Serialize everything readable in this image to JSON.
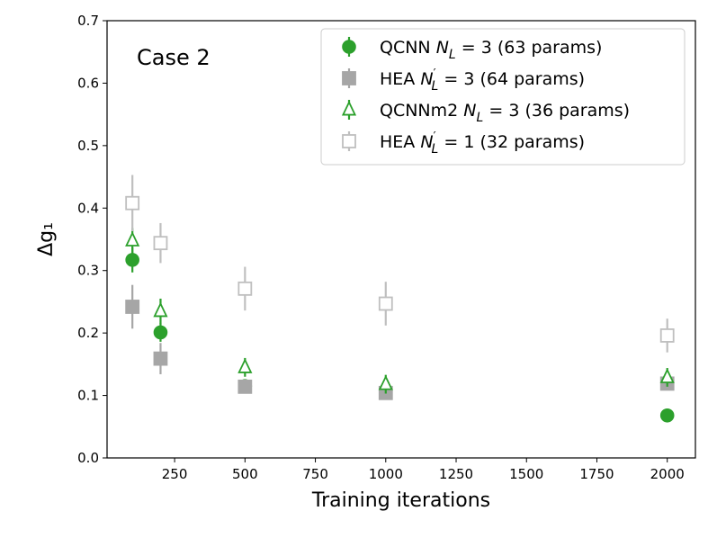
{
  "chart_data": {
    "type": "scatter",
    "title": "",
    "annotation": "Case 2",
    "xlabel": "Training iterations",
    "ylabel": "Δg₁",
    "xlim": [
      10,
      2100
    ],
    "ylim": [
      0.0,
      0.7
    ],
    "xticks": [
      250,
      500,
      750,
      1000,
      1250,
      1500,
      1750,
      2000
    ],
    "xtick_labels": [
      "250",
      "500",
      "750",
      "1000",
      "1250",
      "1500",
      "1750",
      "2000"
    ],
    "yticks": [
      0.0,
      0.1,
      0.2,
      0.3,
      0.4,
      0.5,
      0.6,
      0.7
    ],
    "ytick_labels": [
      "0.0",
      "0.1",
      "0.2",
      "0.3",
      "0.4",
      "0.5",
      "0.6",
      "0.7"
    ],
    "legend_position": "top-right",
    "colors": {
      "green": "#2ca02c",
      "gray": "#a6a6a6",
      "lightgray": "#bfbfbf"
    },
    "series": [
      {
        "name": "QCNN N_L = 3 (63 params)",
        "legend_prefix": "QCNN ",
        "legend_var": "N",
        "legend_sub": "L",
        "legend_prime": false,
        "legend_suffix": " = 3 (63 params)",
        "marker": "circle",
        "filled": true,
        "color": "#2ca02c",
        "x": [
          100,
          200,
          500,
          1000,
          2000
        ],
        "y": [
          0.317,
          0.201,
          0.115,
          0.108,
          0.068
        ],
        "yerr": [
          0.02,
          0.015,
          0.01,
          0.01,
          0.005
        ]
      },
      {
        "name": "HEA N'_L = 3 (64 params)",
        "legend_prefix": "HEA ",
        "legend_var": "N",
        "legend_sub": "L",
        "legend_prime": true,
        "legend_suffix": " = 3 (64 params)",
        "marker": "square",
        "filled": true,
        "color": "#a6a6a6",
        "x": [
          100,
          200,
          500,
          1000,
          2000
        ],
        "y": [
          0.242,
          0.159,
          0.114,
          0.104,
          0.119
        ],
        "yerr": [
          0.035,
          0.025,
          0.01,
          0.01,
          0.01
        ]
      },
      {
        "name": "QCNNm2 N_L = 3 (36 params)",
        "legend_prefix": "QCNNm2 ",
        "legend_var": "N",
        "legend_sub": "L",
        "legend_prime": false,
        "legend_suffix": " = 3 (36 params)",
        "marker": "triangle",
        "filled": false,
        "color": "#2ca02c",
        "x": [
          100,
          200,
          500,
          1000,
          2000
        ],
        "y": [
          0.348,
          0.235,
          0.145,
          0.118,
          0.129
        ],
        "yerr": [
          0.02,
          0.02,
          0.015,
          0.015,
          0.015
        ]
      },
      {
        "name": "HEA N'_L = 1 (32 params)",
        "legend_prefix": "HEA ",
        "legend_var": "N",
        "legend_sub": "L",
        "legend_prime": true,
        "legend_suffix": " = 1 (32 params)",
        "marker": "square",
        "filled": false,
        "color": "#bfbfbf",
        "x": [
          100,
          200,
          500,
          1000,
          2000
        ],
        "y": [
          0.408,
          0.344,
          0.271,
          0.247,
          0.196
        ],
        "yerr": [
          0.045,
          0.032,
          0.035,
          0.035,
          0.027
        ]
      }
    ]
  }
}
